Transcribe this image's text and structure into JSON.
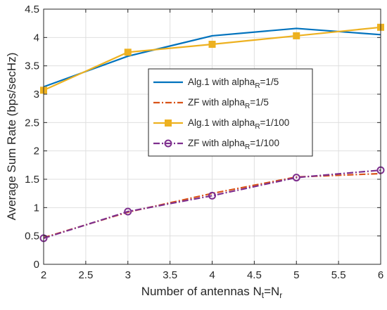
{
  "chart_data": {
    "type": "line",
    "xlabel": "Number of antennas N",
    "xlabel_sub1": "t",
    "xlabel_mid": "=N",
    "xlabel_sub2": "r",
    "ylabel": "Average Sum Rate (bps/secHz)",
    "xlim": [
      2,
      6
    ],
    "ylim": [
      0,
      4.5
    ],
    "x_ticks": [
      "2",
      "2.5",
      "3",
      "3.5",
      "4",
      "4.5",
      "5",
      "5.5",
      "6"
    ],
    "y_ticks": [
      "0",
      "0.5",
      "1",
      "1.5",
      "2",
      "2.5",
      "3",
      "3.5",
      "4",
      "4.5"
    ],
    "grid": true,
    "legend_position": "center-right",
    "x": [
      2,
      3,
      4,
      5,
      6
    ],
    "series": [
      {
        "name_main": "Alg.1 with alpha",
        "name_sub": "R",
        "name_tail": "=1/5",
        "color": "#0072BD",
        "line": "solid",
        "marker": "none",
        "values": [
          3.13,
          3.67,
          4.03,
          4.16,
          4.05
        ]
      },
      {
        "name_main": "ZF with alpha",
        "name_sub": "R",
        "name_tail": "=1/5",
        "color": "#D95319",
        "line": "dashdot",
        "marker": "none",
        "values": [
          0.47,
          0.92,
          1.25,
          1.54,
          1.6
        ]
      },
      {
        "name_main": "Alg.1 with alpha",
        "name_sub": "R",
        "name_tail": "=1/100",
        "color": "#EDB120",
        "line": "solid",
        "marker": "square",
        "values": [
          3.07,
          3.74,
          3.88,
          4.03,
          4.18
        ]
      },
      {
        "name_main": "ZF with alpha",
        "name_sub": "R",
        "name_tail": "=1/100",
        "color": "#7E2F8E",
        "line": "dashdot",
        "marker": "circle",
        "values": [
          0.46,
          0.93,
          1.21,
          1.53,
          1.66
        ]
      }
    ]
  }
}
